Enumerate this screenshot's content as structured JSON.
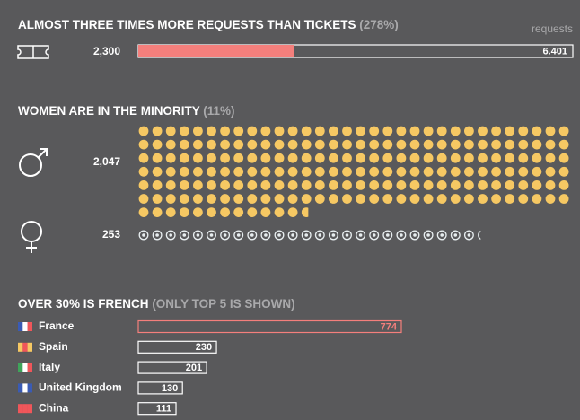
{
  "tickets": {
    "title": "ALMOST THREE TIMES MORE REQUESTS THAN TICKETS",
    "note": "(278%)",
    "requests_label": "requests",
    "tickets_value": {
      "value": 2300,
      "label": "2,300"
    },
    "requests_value": {
      "value": 6401,
      "label": "6.401"
    }
  },
  "gender": {
    "title": "WOMEN ARE IN THE MINORITY",
    "note": "(11%)",
    "men": {
      "value": 2047,
      "label": "2,047"
    },
    "women": 253
  },
  "countries": {
    "title": "OVER 30% IS FRENCH",
    "note": "(ONLY TOP 5 IS SHOWN)",
    "rows": [
      {
        "name": "France",
        "value": 774
      },
      {
        "name": "Spain",
        "value": 230
      },
      {
        "name": "Italy",
        "value": 201
      },
      {
        "name": "United Kingdom",
        "value": 130
      },
      {
        "name": "China",
        "value": 111
      }
    ]
  }
}
